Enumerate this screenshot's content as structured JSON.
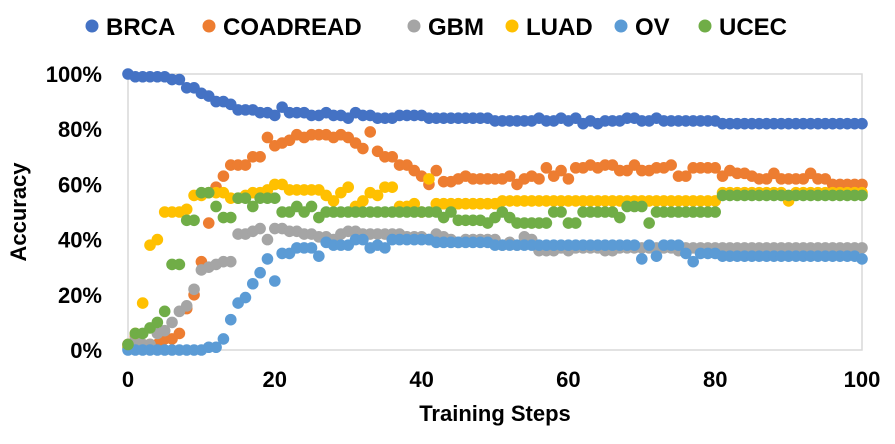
{
  "chart_data": {
    "type": "scatter",
    "xlabel": "Training Steps",
    "ylabel": "Accuracy",
    "xlim": [
      0,
      100
    ],
    "ylim": [
      0,
      100
    ],
    "x_ticks": [
      0,
      20,
      40,
      60,
      80,
      100
    ],
    "x_tick_labels": [
      "0",
      "20",
      "40",
      "60",
      "80",
      "100"
    ],
    "y_ticks": [
      0,
      20,
      40,
      60,
      80,
      100
    ],
    "y_tick_labels": [
      "0%",
      "20%",
      "40%",
      "60%",
      "80%",
      "100%"
    ],
    "grid": "none",
    "legend_position": "top",
    "series": [
      {
        "name": "BRCA",
        "color": "#4472C4",
        "y": [
          100,
          99,
          99,
          99,
          99,
          99,
          98,
          98,
          95,
          95,
          93,
          92,
          90,
          90,
          89,
          87,
          87,
          87,
          86,
          86,
          85,
          88,
          86,
          86,
          86,
          85,
          85,
          86,
          85,
          85,
          84,
          86,
          85,
          85,
          84,
          84,
          84,
          85,
          85,
          85,
          85,
          84,
          84,
          84,
          84,
          84,
          84,
          84,
          84,
          84,
          83,
          83,
          83,
          83,
          83,
          83,
          84,
          83,
          83,
          84,
          83,
          84,
          82,
          83,
          82,
          83,
          83,
          83,
          84,
          84,
          83,
          83,
          84,
          83,
          83,
          83,
          83,
          83,
          83,
          83,
          83,
          82,
          82,
          82,
          82,
          82,
          82,
          82,
          82,
          82,
          82,
          82,
          82,
          82,
          82,
          82,
          82,
          82,
          82,
          82,
          82
        ]
      },
      {
        "name": "COADREAD",
        "color": "#ED7D31",
        "y": [
          2,
          5,
          2,
          2,
          2,
          4,
          4,
          6,
          15,
          20,
          32,
          46,
          59,
          63,
          67,
          67,
          67,
          70,
          70,
          77,
          74,
          75,
          76,
          78,
          77,
          78,
          78,
          78,
          77,
          78,
          77,
          75,
          73,
          79,
          72,
          70,
          70,
          67,
          67,
          65,
          63,
          60,
          65,
          61,
          61,
          62,
          63,
          62,
          62,
          62,
          62,
          62,
          63,
          60,
          62,
          63,
          62,
          66,
          63,
          65,
          62,
          66,
          66,
          67,
          66,
          67,
          67,
          65,
          65,
          67,
          65,
          65,
          66,
          66,
          67,
          63,
          63,
          66,
          66,
          66,
          66,
          63,
          65,
          64,
          64,
          63,
          62,
          62,
          64,
          62,
          62,
          62,
          62,
          64,
          62,
          62,
          60,
          60,
          60,
          60,
          60
        ]
      },
      {
        "name": "GBM",
        "color": "#A5A5A5",
        "y": [
          1,
          4,
          2,
          2,
          6,
          7,
          10,
          14,
          16,
          22,
          29,
          30,
          31,
          32,
          32,
          42,
          42,
          43,
          44,
          40,
          44,
          44,
          43,
          43,
          42,
          42,
          41,
          41,
          40,
          42,
          43,
          43,
          42,
          42,
          42,
          42,
          42,
          42,
          41,
          41,
          41,
          40,
          42,
          41,
          40,
          39,
          40,
          40,
          40,
          40,
          40,
          38,
          39,
          38,
          41,
          40,
          36,
          36,
          36,
          37,
          36,
          37,
          37,
          37,
          37,
          36,
          36,
          37,
          37,
          37,
          37,
          37,
          37,
          37,
          37,
          36,
          37,
          37,
          37,
          37,
          37,
          37,
          37,
          37,
          37,
          37,
          37,
          37,
          37,
          37,
          37,
          37,
          37,
          37,
          37,
          37,
          37,
          37,
          37,
          37,
          37
        ]
      },
      {
        "name": "LUAD",
        "color": "#FFC000",
        "y": [
          1,
          6,
          17,
          38,
          40,
          50,
          50,
          50,
          51,
          56,
          56,
          57,
          57,
          57,
          55,
          55,
          56,
          57,
          57,
          58,
          60,
          60,
          58,
          58,
          58,
          58,
          58,
          56,
          54,
          57,
          59,
          52,
          54,
          57,
          56,
          59,
          59,
          52,
          52,
          53,
          50,
          62,
          53,
          53,
          53,
          53,
          53,
          53,
          53,
          53,
          53,
          54,
          54,
          54,
          54,
          54,
          54,
          54,
          54,
          54,
          54,
          54,
          54,
          54,
          54,
          54,
          54,
          54,
          54,
          54,
          54,
          54,
          54,
          54,
          54,
          54,
          54,
          54,
          54,
          54,
          54,
          57,
          57,
          57,
          57,
          57,
          57,
          57,
          57,
          57,
          54,
          57,
          57,
          57,
          57,
          57,
          57,
          57,
          57,
          57,
          57
        ]
      },
      {
        "name": "OV",
        "color": "#5B9BD5",
        "y": [
          0,
          0,
          0,
          0,
          0,
          0,
          0,
          0,
          0,
          0,
          0,
          1,
          1,
          4,
          11,
          17,
          19,
          24,
          28,
          33,
          25,
          35,
          35,
          37,
          37,
          37,
          34,
          39,
          38,
          38,
          38,
          40,
          40,
          37,
          38,
          37,
          40,
          40,
          40,
          40,
          40,
          40,
          39,
          39,
          39,
          39,
          39,
          39,
          39,
          39,
          38,
          38,
          38,
          38,
          38,
          38,
          38,
          38,
          38,
          38,
          38,
          38,
          38,
          38,
          38,
          38,
          38,
          38,
          38,
          38,
          33,
          38,
          34,
          38,
          38,
          38,
          35,
          32,
          35,
          35,
          35,
          34,
          34,
          34,
          34,
          34,
          34,
          34,
          34,
          34,
          34,
          34,
          34,
          34,
          34,
          34,
          34,
          34,
          34,
          34,
          33
        ]
      },
      {
        "name": "UCEC",
        "color": "#70AD47",
        "y": [
          2,
          6,
          6,
          8,
          10,
          14,
          31,
          31,
          47,
          47,
          57,
          57,
          52,
          48,
          48,
          55,
          55,
          52,
          55,
          55,
          55,
          50,
          50,
          52,
          50,
          52,
          48,
          50,
          50,
          50,
          50,
          50,
          50,
          50,
          50,
          50,
          50,
          50,
          50,
          50,
          50,
          50,
          50,
          48,
          50,
          47,
          47,
          47,
          47,
          46,
          48,
          50,
          48,
          46,
          46,
          46,
          46,
          46,
          50,
          50,
          46,
          46,
          50,
          50,
          50,
          50,
          50,
          48,
          52,
          52,
          52,
          46,
          50,
          50,
          50,
          50,
          50,
          50,
          50,
          50,
          50,
          56,
          56,
          56,
          56,
          56,
          56,
          56,
          56,
          56,
          56,
          56,
          56,
          56,
          56,
          56,
          56,
          56,
          56,
          56,
          56
        ]
      }
    ]
  }
}
